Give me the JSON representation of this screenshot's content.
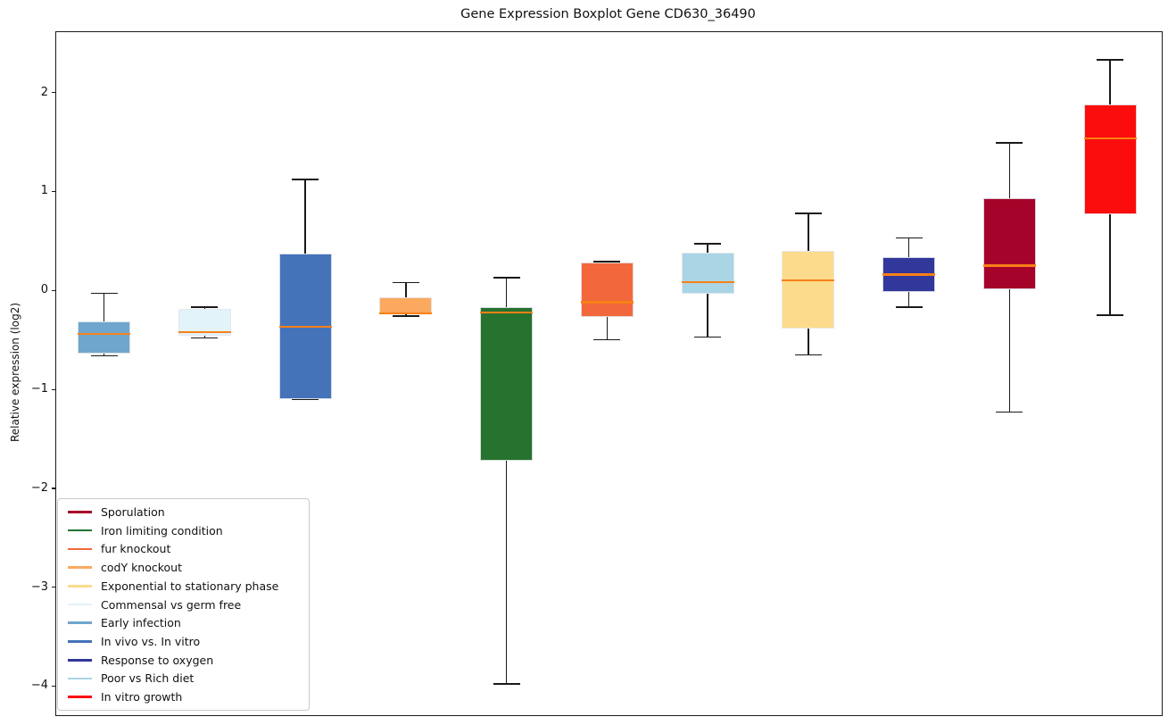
{
  "chart_data": {
    "type": "box",
    "title": "Gene Expression Boxplot Gene CD630_36490",
    "xlabel": "",
    "ylabel": "Relative expression (log2)",
    "ylim": [
      -4.285,
      2.62
    ],
    "grid": false,
    "legend_position": "lower left",
    "yticks": [
      {
        "value": 2,
        "label": "2"
      },
      {
        "value": 1,
        "label": "1"
      },
      {
        "value": 0,
        "label": "0"
      },
      {
        "value": -1,
        "label": "−1"
      },
      {
        "value": -2,
        "label": "−2"
      },
      {
        "value": -3,
        "label": "−3"
      },
      {
        "value": -4,
        "label": "−4"
      }
    ],
    "series": [
      {
        "name": "Early infection",
        "color": "#6EA6CD",
        "whislo": -0.66,
        "q1": -0.64,
        "med": -0.44,
        "q3": -0.31,
        "whishi": -0.03
      },
      {
        "name": "Commensal vs germ free",
        "color": "#E2F3FA",
        "whislo": -0.48,
        "q1": -0.46,
        "med": -0.42,
        "q3": -0.19,
        "whishi": -0.17
      },
      {
        "name": "In vivo vs. In vitro",
        "color": "#4473B9",
        "whislo": -1.1,
        "q1": -1.1,
        "med": -0.37,
        "q3": 0.37,
        "whishi": 1.12
      },
      {
        "name": "codY knockout",
        "color": "#FBA95F",
        "whislo": -0.26,
        "q1": -0.24,
        "med": -0.23,
        "q3": -0.07,
        "whishi": 0.08
      },
      {
        "name": "Iron limiting condition",
        "color": "#26722F",
        "whislo": -3.98,
        "q1": -1.72,
        "med": -0.22,
        "q3": -0.17,
        "whishi": 0.13
      },
      {
        "name": "fur knockout",
        "color": "#F2683C",
        "whislo": -0.5,
        "q1": -0.27,
        "med": -0.12,
        "q3": 0.28,
        "whishi": 0.29
      },
      {
        "name": "Poor vs Rich diet",
        "color": "#A9D5E5",
        "whislo": -0.47,
        "q1": -0.03,
        "med": 0.08,
        "q3": 0.38,
        "whishi": 0.47
      },
      {
        "name": "Exponential to stationary phase",
        "color": "#FCDB8C",
        "whislo": -0.65,
        "q1": -0.39,
        "med": 0.1,
        "q3": 0.4,
        "whishi": 0.78
      },
      {
        "name": "Response to oxygen",
        "color": "#31379B",
        "whislo": -0.17,
        "q1": -0.02,
        "med": 0.16,
        "q3": 0.34,
        "whishi": 0.53
      },
      {
        "name": "Sporulation",
        "color": "#A50329",
        "whislo": -1.23,
        "q1": 0.01,
        "med": 0.25,
        "q3": 0.93,
        "whishi": 1.49
      },
      {
        "name": "In vitro growth",
        "color": "#FB0D0D",
        "whislo": -0.25,
        "q1": 0.77,
        "med": 1.54,
        "q3": 1.88,
        "whishi": 2.33
      }
    ],
    "legend": [
      {
        "label": "Sporulation",
        "color": "#A50329"
      },
      {
        "label": "Iron limiting condition",
        "color": "#26722F"
      },
      {
        "label": "fur knockout",
        "color": "#F2683C"
      },
      {
        "label": "codY knockout",
        "color": "#FBA95F"
      },
      {
        "label": "Exponential to stationary phase",
        "color": "#FCDB8C"
      },
      {
        "label": "Commensal vs germ free",
        "color": "#E2F3FA"
      },
      {
        "label": "Early infection",
        "color": "#6EA6CD"
      },
      {
        "label": "In vivo vs. In vitro",
        "color": "#4473B9"
      },
      {
        "label": "Response to oxygen",
        "color": "#31379B"
      },
      {
        "label": "Poor vs Rich diet",
        "color": "#A9D5E5"
      },
      {
        "label": "In vitro growth",
        "color": "#FB0D0D"
      }
    ],
    "colors": {
      "median": "#F88017",
      "whisker": "#1a1a1a",
      "frame": "#1a1a1a",
      "legend_border": "#c9c9c9"
    }
  }
}
